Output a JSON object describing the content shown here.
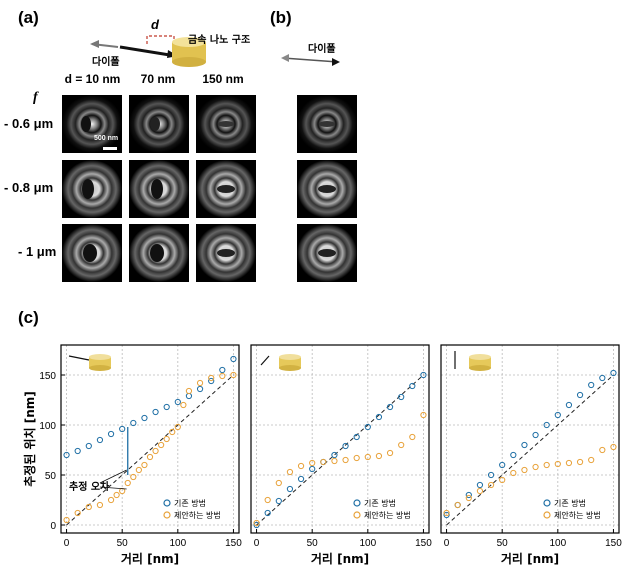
{
  "panels": {
    "a": "(a)",
    "b": "(b)",
    "c": "(c)"
  },
  "schematic": {
    "d_label": "d",
    "dipole_label": "다이폴",
    "structure_label": "금속 나노 구조"
  },
  "panel_b": {
    "dipole_label": "다이폴"
  },
  "columns": [
    "d = 10 nm",
    "70 nm",
    "150 nm"
  ],
  "f_label": "f",
  "rows": [
    "- 0.6 μm",
    "- 0.8 μm",
    "- 1 μm"
  ],
  "scale_bar": "500 nm",
  "colors": {
    "blue": "#1f6fa5",
    "orange": "#e8a23a",
    "gold": "#e6c95a"
  },
  "chart_data": [
    {
      "type": "scatter",
      "ylabel": "추정된 위치 [nm]",
      "xlabel": "거리 [nm]",
      "xlim": [
        -5,
        155
      ],
      "ylim": [
        -8,
        180
      ],
      "xticks": [
        0,
        50,
        100,
        150
      ],
      "yticks": [
        0,
        50,
        100,
        150
      ],
      "grid": true,
      "legend": "bottom-right",
      "annotation": "추정 오차",
      "series": [
        {
          "name": "기존 방법",
          "x": [
            0,
            10,
            20,
            30,
            40,
            50,
            60,
            70,
            80,
            90,
            100,
            110,
            120,
            130,
            140,
            150
          ],
          "y": [
            70,
            74,
            79,
            85,
            91,
            96,
            102,
            107,
            113,
            118,
            123,
            129,
            136,
            144,
            155,
            166
          ]
        },
        {
          "name": "제안하는 방법",
          "x": [
            0,
            10,
            20,
            30,
            40,
            45,
            50,
            55,
            60,
            65,
            70,
            75,
            80,
            85,
            90,
            95,
            100,
            105,
            110,
            120,
            130,
            140,
            150
          ],
          "y": [
            5,
            12,
            18,
            20,
            25,
            30,
            34,
            42,
            48,
            55,
            60,
            68,
            74,
            80,
            86,
            93,
            98,
            120,
            134,
            142,
            147,
            149,
            150
          ]
        }
      ],
      "reference": {
        "x": [
          0,
          150
        ],
        "y": [
          0,
          150
        ]
      }
    },
    {
      "type": "scatter",
      "xlabel": "거리 [nm]",
      "xlim": [
        -5,
        155
      ],
      "ylim": [
        -8,
        180
      ],
      "xticks": [
        0,
        50,
        100,
        150
      ],
      "grid": true,
      "legend": "bottom-right",
      "series": [
        {
          "name": "기존 방법",
          "x": [
            0,
            10,
            20,
            30,
            40,
            50,
            60,
            70,
            80,
            90,
            100,
            110,
            120,
            130,
            140,
            150
          ],
          "y": [
            0,
            12,
            24,
            36,
            46,
            56,
            63,
            70,
            79,
            88,
            98,
            108,
            118,
            128,
            139,
            150
          ]
        },
        {
          "name": "제안하는 방법",
          "x": [
            0,
            10,
            20,
            30,
            40,
            50,
            60,
            70,
            80,
            90,
            100,
            110,
            120,
            130,
            140,
            150
          ],
          "y": [
            2,
            25,
            42,
            53,
            59,
            62,
            63,
            64,
            65,
            67,
            68,
            69,
            72,
            80,
            88,
            110
          ]
        }
      ],
      "reference": {
        "x": [
          0,
          150
        ],
        "y": [
          0,
          150
        ]
      }
    },
    {
      "type": "scatter",
      "xlabel": "거리 [nm]",
      "xlim": [
        -5,
        155
      ],
      "ylim": [
        -8,
        180
      ],
      "xticks": [
        0,
        50,
        100,
        150
      ],
      "grid": true,
      "legend": "bottom-right",
      "series": [
        {
          "name": "기존 방법",
          "x": [
            0,
            10,
            20,
            30,
            40,
            50,
            60,
            70,
            80,
            90,
            100,
            110,
            120,
            130,
            140,
            150
          ],
          "y": [
            10,
            20,
            30,
            40,
            50,
            60,
            70,
            80,
            90,
            100,
            110,
            120,
            130,
            140,
            147,
            152
          ]
        },
        {
          "name": "제안하는 방법",
          "x": [
            0,
            10,
            20,
            30,
            40,
            50,
            60,
            70,
            80,
            90,
            100,
            110,
            120,
            130,
            140,
            150
          ],
          "y": [
            12,
            20,
            27,
            34,
            40,
            45,
            52,
            55,
            58,
            60,
            61,
            62,
            63,
            65,
            75,
            78
          ]
        }
      ],
      "reference": {
        "x": [
          0,
          150
        ],
        "y": [
          0,
          150
        ]
      }
    }
  ]
}
